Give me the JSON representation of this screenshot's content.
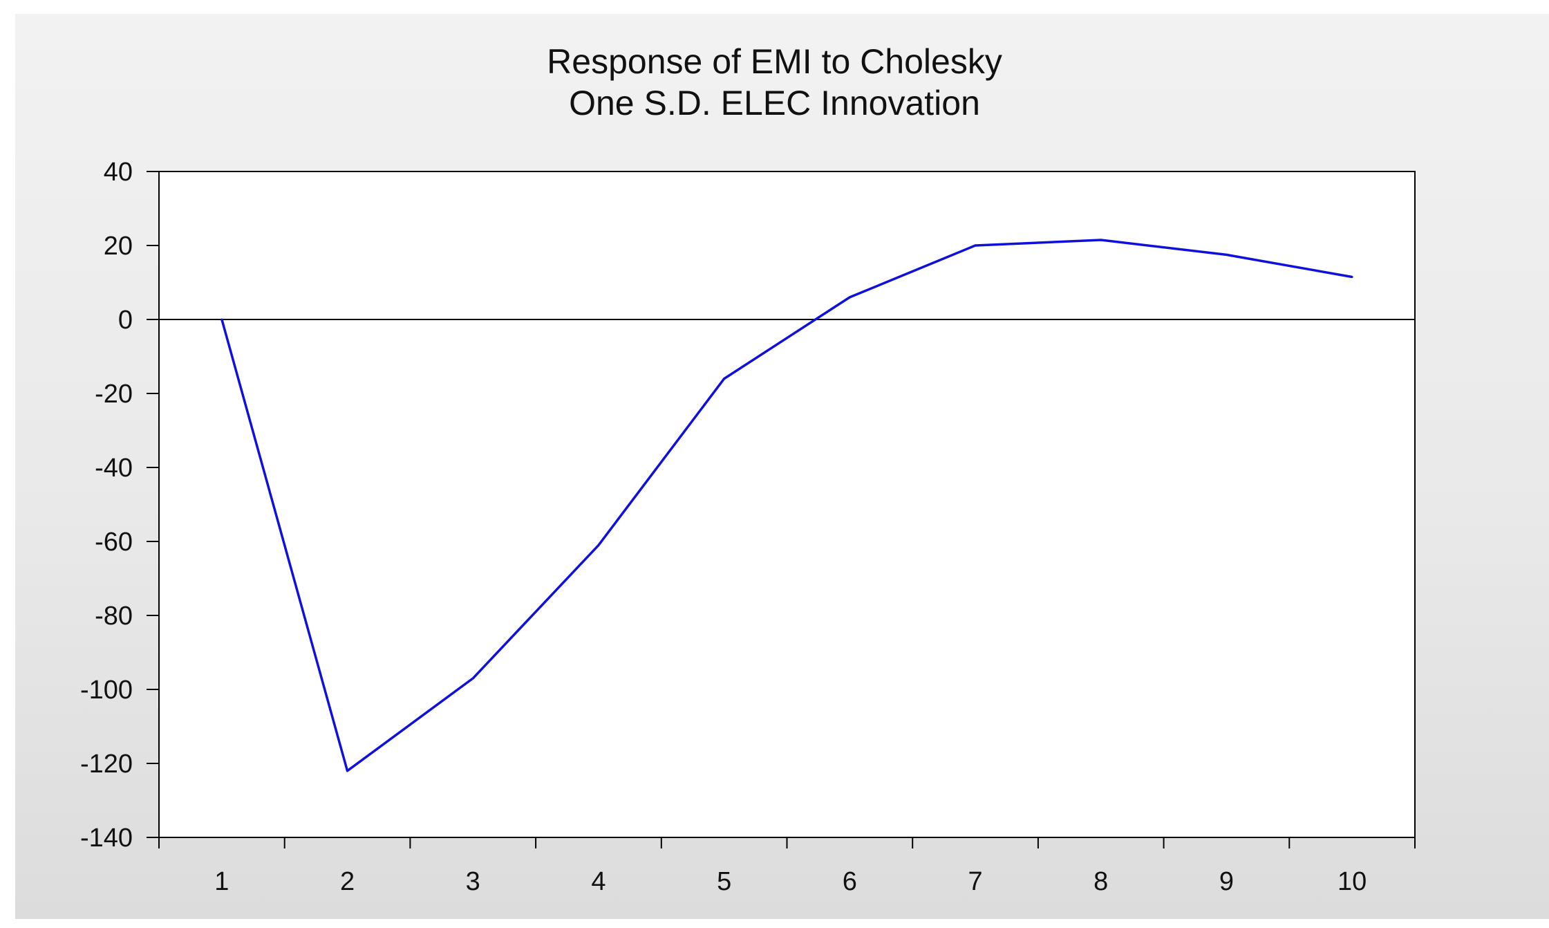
{
  "chart_data": {
    "type": "line",
    "title": "Response of EMI to Cholesky",
    "subtitle": "One S.D. ELEC Innovation",
    "xlabel": "",
    "ylabel": "",
    "categories": [
      "1",
      "2",
      "3",
      "4",
      "5",
      "6",
      "7",
      "8",
      "9",
      "10"
    ],
    "series": [
      {
        "values": [
          0,
          -122,
          -97,
          -61,
          -16,
          6,
          20,
          21.5,
          17.5,
          11.5
        ],
        "color": "#1010dd"
      }
    ],
    "ylim": [
      -140,
      40
    ],
    "yticks": [
      40,
      20,
      0,
      -20,
      -40,
      -60,
      -80,
      -100,
      -120,
      -140
    ],
    "zero_line": true,
    "grid": false,
    "legend": "none"
  }
}
